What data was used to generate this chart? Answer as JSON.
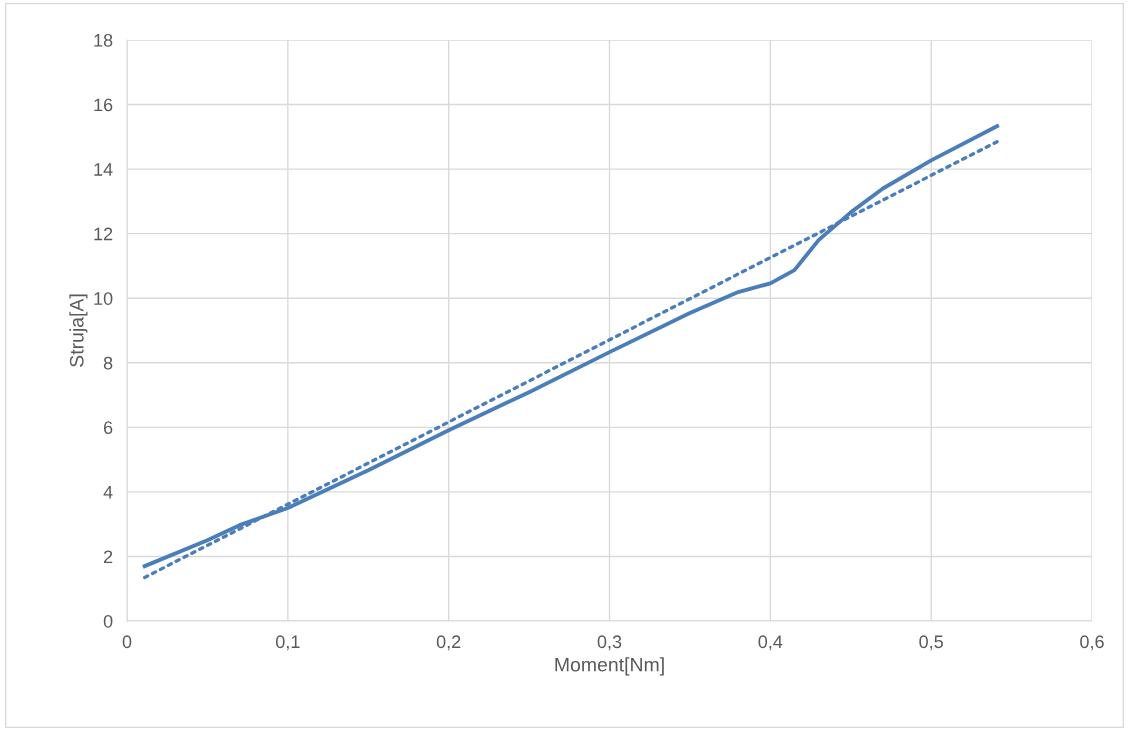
{
  "chart_data": {
    "type": "line",
    "xlabel": "Moment[Nm]",
    "ylabel": "Struja[A]",
    "xlim": [
      0,
      0.6
    ],
    "xticks": [
      {
        "value": 0,
        "label": "0"
      },
      {
        "value": 0.1,
        "label": "0,1"
      },
      {
        "value": 0.2,
        "label": "0,2"
      },
      {
        "value": 0.3,
        "label": "0,3"
      },
      {
        "value": 0.4,
        "label": "0,4"
      },
      {
        "value": 0.5,
        "label": "0,5"
      },
      {
        "value": 0.6,
        "label": "0,6"
      }
    ],
    "ylim": [
      0,
      18
    ],
    "yticks": [
      0,
      2,
      4,
      6,
      8,
      10,
      12,
      14,
      16,
      18
    ],
    "grid": true,
    "legend": false,
    "marker": "none",
    "series": [
      {
        "color": "#4a7ebb",
        "line_style": "solid",
        "x": [
          0.011,
          0.05,
          0.07,
          0.1,
          0.15,
          0.2,
          0.25,
          0.3,
          0.35,
          0.38,
          0.4,
          0.415,
          0.43,
          0.45,
          0.47,
          0.5,
          0.541
        ],
        "values": [
          1.7,
          2.5,
          2.97,
          3.5,
          4.67,
          5.91,
          7.09,
          8.33,
          9.54,
          10.19,
          10.46,
          10.87,
          11.8,
          12.66,
          13.4,
          14.27,
          15.33
        ]
      },
      {
        "color": "#4a7ebb",
        "line_style": "dotted",
        "x": [
          0.011,
          0.541
        ],
        "values": [
          1.35,
          14.85
        ]
      }
    ]
  }
}
